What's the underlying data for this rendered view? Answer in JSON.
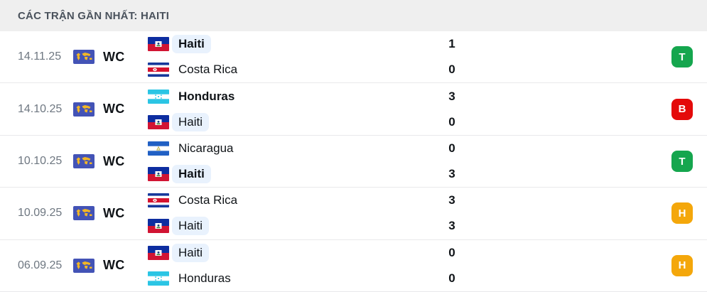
{
  "header": {
    "title": "CÁC TRẬN GẦN NHẤT: HAITI"
  },
  "colors": {
    "header_bg": "#efefef",
    "highlight_bg": "#e9f2fd",
    "win_badge": "#15a64e",
    "loss_badge": "#e40a0a",
    "draw_badge": "#f4a70b",
    "competition_icon_bg": "#4353b6",
    "competition_icon_map": "#f2b626"
  },
  "matches": [
    {
      "date": "14.11.25",
      "competition": {
        "label": "WC",
        "icon": "world-cup-icon"
      },
      "teams": [
        {
          "name": "Haiti",
          "flag": "haiti-flag",
          "score": "1",
          "winner": true,
          "highlighted": true
        },
        {
          "name": "Costa Rica",
          "flag": "costa-rica-flag",
          "score": "0",
          "winner": false,
          "highlighted": false
        }
      ],
      "result": {
        "label": "T",
        "type": "win"
      }
    },
    {
      "date": "14.10.25",
      "competition": {
        "label": "WC",
        "icon": "world-cup-icon"
      },
      "teams": [
        {
          "name": "Honduras",
          "flag": "honduras-flag",
          "score": "3",
          "winner": true,
          "highlighted": false
        },
        {
          "name": "Haiti",
          "flag": "haiti-flag",
          "score": "0",
          "winner": false,
          "highlighted": true
        }
      ],
      "result": {
        "label": "B",
        "type": "loss"
      }
    },
    {
      "date": "10.10.25",
      "competition": {
        "label": "WC",
        "icon": "world-cup-icon"
      },
      "teams": [
        {
          "name": "Nicaragua",
          "flag": "nicaragua-flag",
          "score": "0",
          "winner": false,
          "highlighted": false
        },
        {
          "name": "Haiti",
          "flag": "haiti-flag",
          "score": "3",
          "winner": true,
          "highlighted": true
        }
      ],
      "result": {
        "label": "T",
        "type": "win"
      }
    },
    {
      "date": "10.09.25",
      "competition": {
        "label": "WC",
        "icon": "world-cup-icon"
      },
      "teams": [
        {
          "name": "Costa Rica",
          "flag": "costa-rica-flag",
          "score": "3",
          "winner": false,
          "highlighted": false
        },
        {
          "name": "Haiti",
          "flag": "haiti-flag",
          "score": "3",
          "winner": false,
          "highlighted": true
        }
      ],
      "result": {
        "label": "H",
        "type": "draw"
      }
    },
    {
      "date": "06.09.25",
      "competition": {
        "label": "WC",
        "icon": "world-cup-icon"
      },
      "teams": [
        {
          "name": "Haiti",
          "flag": "haiti-flag",
          "score": "0",
          "winner": false,
          "highlighted": true
        },
        {
          "name": "Honduras",
          "flag": "honduras-flag",
          "score": "0",
          "winner": false,
          "highlighted": false
        }
      ],
      "result": {
        "label": "H",
        "type": "draw"
      }
    }
  ]
}
